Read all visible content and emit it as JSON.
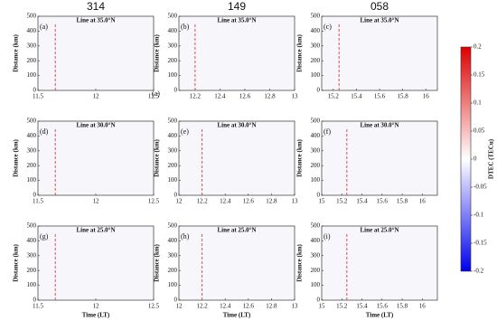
{
  "column_titles": [
    "314",
    "149",
    "058"
  ],
  "chart_data": [
    {
      "type": "heatmap",
      "title": "Line at 35.0°N",
      "panel_label": "(a)",
      "ylabel": "Distance (km)",
      "xlim": [
        11.5,
        12.5
      ],
      "xticks": [
        11.5,
        12,
        12.5
      ],
      "ylim": [
        0,
        500
      ],
      "yticks": [
        0,
        100,
        200,
        300,
        400,
        500
      ],
      "reference_line_x": 11.65,
      "reference_color": "#d9534f"
    },
    {
      "type": "heatmap",
      "title": "Line at 35.0°N",
      "panel_label": "(b)",
      "annotation": "(a)",
      "ylabel": "Distance (km)",
      "xlim": [
        12.07,
        13
      ],
      "xticks": [
        12.2,
        12.4,
        12.6,
        12.8,
        13
      ],
      "ylim": [
        0,
        500
      ],
      "yticks": [
        0,
        100,
        200,
        300,
        400,
        500
      ],
      "reference_line_x": 12.2,
      "reference_color": "#d9534f"
    },
    {
      "type": "heatmap",
      "title": "Line at 35.0°N",
      "panel_label": "(c)",
      "ylabel": "Distance (km)",
      "xlim": [
        15.1,
        16.1
      ],
      "xticks": [
        15.2,
        15.4,
        15.6,
        15.8,
        16
      ],
      "ylim": [
        0,
        500
      ],
      "yticks": [
        0,
        100,
        200,
        300,
        400,
        500
      ],
      "reference_line_x": 15.25,
      "reference_color": "#d9534f"
    },
    {
      "type": "heatmap",
      "title": "Line at 30.0°N",
      "panel_label": "(d)",
      "ylabel": "Distance (km)",
      "xlim": [
        11.5,
        12.5
      ],
      "xticks": [
        11.5,
        12,
        12.5
      ],
      "ylim": [
        0,
        500
      ],
      "yticks": [
        0,
        100,
        200,
        300,
        400,
        500
      ],
      "reference_line_x": 11.65,
      "reference_color": "#d9534f"
    },
    {
      "type": "heatmap",
      "title": "Line at 30.0°N",
      "panel_label": "(e)",
      "ylabel": "Distance (km)",
      "xlim": [
        12,
        13
      ],
      "xticks": [
        12,
        12.2,
        12.4,
        12.6,
        12.8,
        13
      ],
      "ylim": [
        0,
        500
      ],
      "yticks": [
        0,
        100,
        200,
        300,
        400,
        500
      ],
      "reference_line_x": 12.2,
      "reference_color": "#d9534f"
    },
    {
      "type": "heatmap",
      "title": "Line at 30.0°N",
      "panel_label": "(f)",
      "ylabel": "Distance (km)",
      "xlim": [
        15,
        16.15
      ],
      "xticks": [
        15,
        15.2,
        15.4,
        15.6,
        15.8,
        16
      ],
      "ylim": [
        0,
        500
      ],
      "yticks": [
        0,
        100,
        200,
        300,
        400,
        500
      ],
      "reference_line_x": 15.25,
      "reference_color": "#d9534f"
    },
    {
      "type": "heatmap",
      "title": "Line at 25.0°N",
      "panel_label": "(g)",
      "ylabel": "Distance (km)",
      "xlabel": "Time (LT)",
      "xlim": [
        11.5,
        12.5
      ],
      "xticks": [
        11.5,
        12,
        12.5
      ],
      "ylim": [
        0,
        500
      ],
      "yticks": [
        0,
        100,
        200,
        300,
        400,
        500
      ],
      "reference_line_x": 11.65,
      "reference_color": "#d9534f"
    },
    {
      "type": "heatmap",
      "title": "Line at 25.0°N",
      "panel_label": "(h)",
      "ylabel": "Distance (km)",
      "xlabel": "Time (LT)",
      "xlim": [
        12,
        13
      ],
      "xticks": [
        12,
        12.2,
        12.4,
        12.6,
        12.8,
        13
      ],
      "ylim": [
        0,
        500
      ],
      "yticks": [
        0,
        100,
        200,
        300,
        400,
        500
      ],
      "reference_line_x": 12.2,
      "reference_color": "#d9534f"
    },
    {
      "type": "heatmap",
      "title": "Line at 25.0°N",
      "panel_label": "(i)",
      "ylabel": "Distance (km)",
      "xlabel": "Time (LT)",
      "xlim": [
        15,
        16.15
      ],
      "xticks": [
        15,
        15.2,
        15.4,
        15.6,
        15.8,
        16
      ],
      "ylim": [
        0,
        500
      ],
      "yticks": [
        0,
        100,
        200,
        300,
        400,
        500
      ],
      "reference_line_x": 15.25,
      "reference_color": "#d9534f"
    }
  ],
  "colorbar": {
    "label": "DTEC (TECu)",
    "lim": [
      -0.2,
      0.2
    ],
    "ticks": [
      0.2,
      0.15,
      0.1,
      0.05,
      0,
      -0.05,
      -0.1,
      -0.15,
      -0.2
    ],
    "colors": [
      "#0000ee",
      "#ffffff",
      "#dd0000"
    ]
  }
}
